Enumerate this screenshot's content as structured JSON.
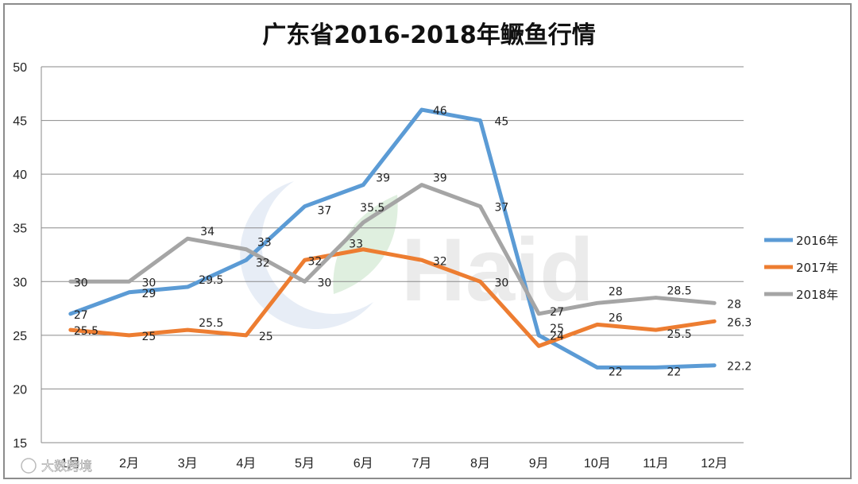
{
  "watermarks": {
    "logo_text": "Haid",
    "corner_text": "大数跨境"
  },
  "chart_data": {
    "type": "line",
    "title": "广东省2016-2018年鳜鱼行情",
    "categories": [
      "1月",
      "2月",
      "3月",
      "4月",
      "5月",
      "6月",
      "7月",
      "8月",
      "9月",
      "10月",
      "11月",
      "12月"
    ],
    "y_ticks": [
      "15",
      "20",
      "25",
      "30",
      "35",
      "40",
      "45",
      "50"
    ],
    "ylim": [
      15,
      50
    ],
    "grid": true,
    "legend_position": "right",
    "series": [
      {
        "name": "2016年",
        "color": "#5b9bd5",
        "values": [
          27,
          29,
          29.5,
          32,
          37,
          39,
          46,
          45,
          25,
          22,
          22,
          22.2
        ],
        "labels": [
          "27",
          "29",
          "29.5",
          "32",
          "37",
          "39",
          "46",
          "45",
          "25",
          "22",
          "22",
          "22.2"
        ]
      },
      {
        "name": "2017年",
        "color": "#ed7d31",
        "values": [
          25.5,
          25,
          25.5,
          25,
          32,
          33,
          32,
          30,
          24,
          26,
          25.5,
          26.3
        ],
        "labels": [
          "25.5",
          "25",
          "25.5",
          "25",
          "32",
          "33",
          "32",
          "30",
          "24",
          "26",
          "25.5",
          "26.3"
        ]
      },
      {
        "name": "2018年",
        "color": "#a5a5a5",
        "values": [
          30,
          30,
          34,
          33,
          30,
          35.5,
          39,
          37,
          27,
          28,
          28.5,
          28
        ],
        "labels": [
          "30",
          "30",
          "34",
          "33",
          "30",
          "35.5",
          "39",
          "37",
          "27",
          "28",
          "28.5",
          "28"
        ]
      }
    ]
  }
}
